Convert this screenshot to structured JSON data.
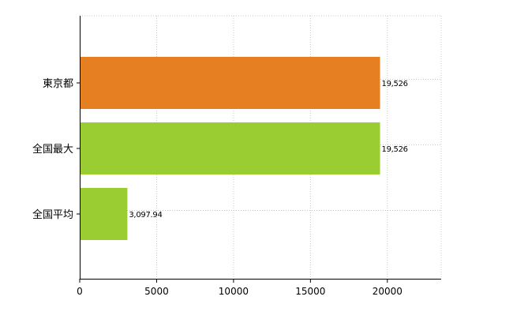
{
  "chart_data": {
    "type": "bar",
    "orientation": "horizontal",
    "categories": [
      "東京都",
      "全国最大",
      "全国平均"
    ],
    "values": [
      19526,
      19526,
      3097.94
    ],
    "value_labels": [
      "19,526",
      "19,526",
      "3,097.94"
    ],
    "bar_colors": [
      "#e67e22",
      "#9acd32",
      "#9acd32"
    ],
    "xlim": [
      0,
      23500
    ],
    "x_ticks": [
      0,
      5000,
      10000,
      15000,
      20000
    ],
    "x_tick_labels": [
      "0",
      "5000",
      "10000",
      "15000",
      "20000"
    ],
    "grid": true,
    "legend": false,
    "title": "",
    "xlabel": "",
    "ylabel": ""
  }
}
